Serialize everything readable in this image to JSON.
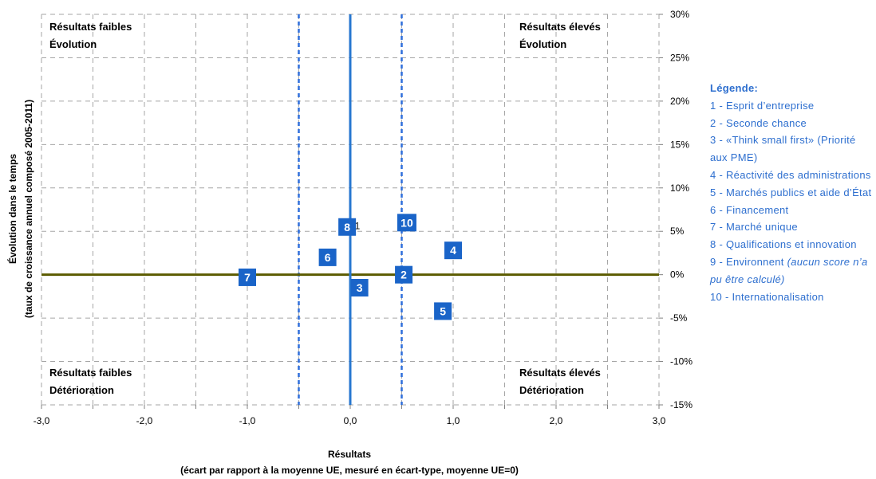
{
  "chart_data": {
    "type": "scatter",
    "title": "",
    "xlabel": "Résultats",
    "xlabel_sub": "(écart par rapport à la moyenne UE, mesuré en écart-type, moyenne UE=0)",
    "ylabel": "Évolution dans le temps",
    "ylabel_sub": "(taux de croissance annuel composé 2005-2011)",
    "xlim": [
      -3.0,
      3.0
    ],
    "ylim": [
      -15,
      30
    ],
    "x_ticks": [
      -3.0,
      -2.0,
      -1.0,
      0.0,
      1.0,
      2.0,
      3.0
    ],
    "x_tick_labels": [
      "-3,0",
      "-2,0",
      "-1,0",
      "0,0",
      "1,0",
      "2,0",
      "3,0"
    ],
    "y_ticks": [
      30,
      25,
      20,
      15,
      10,
      5,
      0,
      -5,
      -10,
      -15
    ],
    "y_tick_labels": [
      "30%",
      "25%",
      "20%",
      "15%",
      "10%",
      "5%",
      "0%",
      "-5%",
      "-10%",
      "-15%"
    ],
    "grid": true,
    "y_axis_position": "right",
    "dashed_verticals": [
      -0.5,
      0.5
    ],
    "points": [
      {
        "label": "1",
        "x": 0.07,
        "y": 5.6
      },
      {
        "label": "2",
        "x": 0.52,
        "y": 0.0
      },
      {
        "label": "3",
        "x": 0.09,
        "y": -1.5
      },
      {
        "label": "4",
        "x": 1.0,
        "y": 2.8
      },
      {
        "label": "5",
        "x": 0.9,
        "y": -4.2
      },
      {
        "label": "6",
        "x": -0.22,
        "y": 2.0
      },
      {
        "label": "7",
        "x": -1.0,
        "y": -0.3
      },
      {
        "label": "8",
        "x": -0.03,
        "y": 5.5
      },
      {
        "label": "10",
        "x": 0.55,
        "y": 6.0
      }
    ],
    "quadrants": {
      "top_left": [
        "Résultats faibles",
        "Évolution"
      ],
      "top_right": [
        "Résultats élevés",
        "Évolution"
      ],
      "bottom_left": [
        "Résultats faibles",
        "Détérioration"
      ],
      "bottom_right": [
        "Résultats élevés",
        "Détérioration"
      ]
    },
    "colors": {
      "marker": "#1a64c8",
      "vline": "#2777d0",
      "hline": "#5b5b00",
      "legend_text": "#2e6fcf",
      "grid": "#a6a6a6"
    }
  },
  "legend": {
    "title": "Légende:",
    "items": [
      "1 - Esprit d’entreprise",
      "2 - Seconde chance",
      "3 - «Think small first» (Priorité aux PME)",
      "4 - Réactivité des administrations",
      "5 - Marchés publics et aide d’État",
      "6 - Financement",
      "7 - Marché unique",
      "8 - Qualifications et innovation"
    ],
    "item9_text": "9 - Environnent ",
    "item9_note": "(aucun score n’a pu être calculé)",
    "item10": "10 - Internationalisation"
  }
}
